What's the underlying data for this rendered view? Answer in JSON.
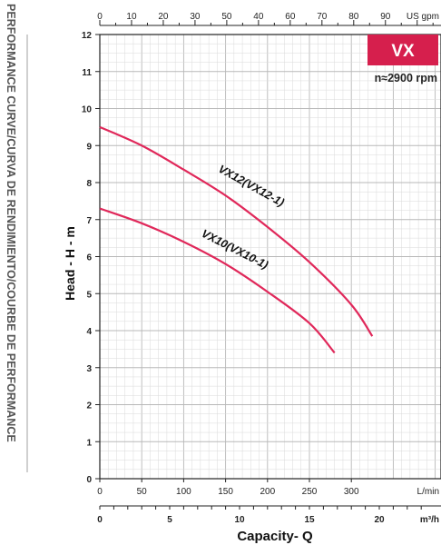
{
  "chart_data": {
    "type": "line",
    "side_title": "PERFORMANCE CURVE/CURVA DE RENDIMIENTO/COURBE DE PERFORMANCE",
    "badge": "VX",
    "speed": "n≈2900 rpm",
    "ylabel": "Head - H - m",
    "xlabel": "Capacity- Q",
    "ylim": [
      0,
      12
    ],
    "xlim_lmin": [
      0,
      330
    ],
    "grid": true,
    "y_ticks": [
      "0",
      "1",
      "2",
      "3",
      "4",
      "5",
      "6",
      "7",
      "8",
      "9",
      "10",
      "11",
      "12"
    ],
    "top_axis": {
      "unit": "US gpm",
      "ticks": [
        "0",
        "10",
        "20",
        "30",
        "50",
        "40",
        "60",
        "70",
        "80",
        "90"
      ]
    },
    "lmin_axis": {
      "unit": "L/min",
      "ticks": [
        "0",
        "50",
        "100",
        "150",
        "200",
        "250",
        "300"
      ]
    },
    "m3h_axis": {
      "unit": "m³/h",
      "ticks": [
        "0",
        "5",
        "10",
        "15",
        "20"
      ]
    },
    "series": [
      {
        "name": "VX12(VX12-1)",
        "color": "#e0285a",
        "x": [
          0,
          50,
          100,
          150,
          200,
          250,
          300,
          325
        ],
        "y": [
          9.5,
          9.0,
          8.35,
          7.65,
          6.8,
          5.85,
          4.7,
          3.85
        ]
      },
      {
        "name": "VX10(VX10-1)",
        "color": "#e0285a",
        "x": [
          0,
          50,
          100,
          150,
          200,
          250,
          280
        ],
        "y": [
          7.3,
          6.9,
          6.4,
          5.8,
          5.05,
          4.2,
          3.4
        ]
      }
    ]
  }
}
